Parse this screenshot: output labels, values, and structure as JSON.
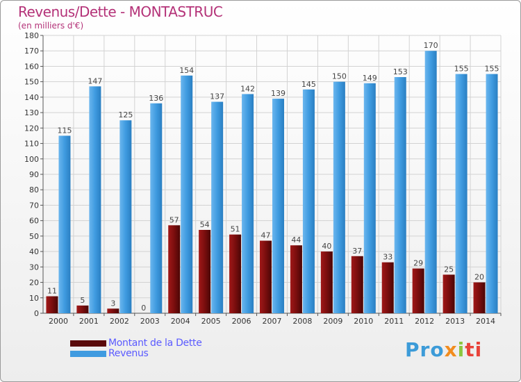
{
  "header": {
    "title": "Revenus/Dette - MONTASTRUC",
    "subtitle": "(en milliers d'€)"
  },
  "chart_data": {
    "type": "bar",
    "categories": [
      "2000",
      "2001",
      "2002",
      "2003",
      "2004",
      "2005",
      "2006",
      "2007",
      "2008",
      "2009",
      "2010",
      "2011",
      "2012",
      "2013",
      "2014"
    ],
    "series": [
      {
        "name": "Montant de la Dette",
        "color": "#7a0e0e",
        "values": [
          11,
          5,
          3,
          0,
          57,
          54,
          51,
          47,
          44,
          40,
          37,
          33,
          29,
          25,
          20
        ]
      },
      {
        "name": "Revenus",
        "color": "#3f9be0",
        "values": [
          115,
          147,
          125,
          136,
          154,
          137,
          142,
          139,
          145,
          150,
          149,
          153,
          170,
          155,
          155
        ]
      }
    ],
    "ylim": [
      0,
      180
    ],
    "ytick_step": 10,
    "grid": true,
    "legend_position": "bottom-left"
  },
  "logo": {
    "text": "Proxiti",
    "parts": [
      "Pro",
      "x",
      "i",
      "ti"
    ]
  }
}
